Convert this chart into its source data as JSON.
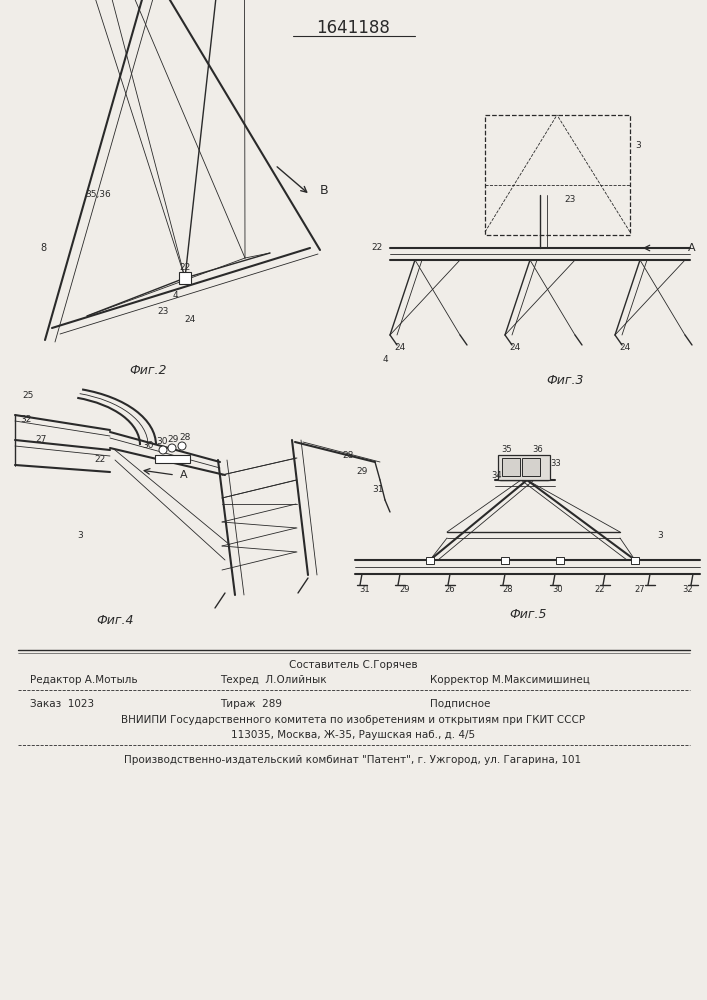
{
  "patent_number": "1641188",
  "bg_color": "#f0ede8",
  "lc": "#2a2a2a",
  "fig_width": 7.07,
  "fig_height": 10.0,
  "footer": {
    "sestavitel": "Составитель С.Горячев",
    "redaktor": "Редактор А.Мотыль",
    "tekhred": "Техред  Л.Олийнык",
    "korrektor": "Корректор М.Максимишинец",
    "zakaz": "Заказ  1023",
    "tirazh": "Тираж  289",
    "podpisnoe": "Подписное",
    "vniiipi": "ВНИИПИ Государственного комитета по изобретениям и открытиям при ГКИТ СССР",
    "address": "113035, Москва, Ж-35, Раушская наб., д. 4/5",
    "publisher": "Производственно-издательский комбинат \"Патент\", г. Ужгород, ул. Гагарина, 101"
  }
}
